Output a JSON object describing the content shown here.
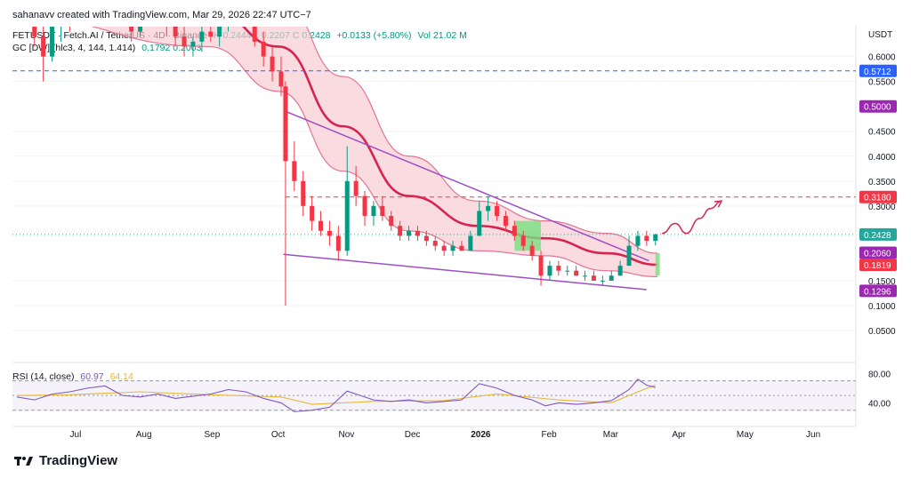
{
  "header": {
    "credit": "sahanavv created with TradingView.com, Mar 29, 2026 22:47 UTC−7",
    "symbol": "FETUSDT · Fetch.AI / TetherUS · 4D · Binance",
    "ohlc": "H 0.2444  L 0.2207  C 0.2428",
    "change": "+0.0133 (+5.80%)",
    "volume": "Vol 21.02 M",
    "gc_label": "GC [DW] (hlc3, 4, 144, 1.414)",
    "gc_values": "0.1792  0.2003",
    "rsi_label": "RSI (14, close)",
    "rsi_value": "60.97",
    "rsi_ma": "64.14"
  },
  "brand": {
    "name": "TradingView"
  },
  "colors": {
    "up": "#089981",
    "down": "#f23645",
    "band_fill": "#f8c9d0",
    "band_line": "#e57393",
    "center_line": "#d6244f",
    "wedge": "#9c4fc4",
    "rsi": "#7e57c2",
    "rsi_ma": "#e8b73a",
    "box": "#77e07e",
    "projection": "#d6244f"
  },
  "chart_data": {
    "type": "candlestick",
    "unit_label": "USDT",
    "price_axis": {
      "ticks": [
        "0.6000",
        "0.5500",
        "0.4500",
        "0.4000",
        "0.3500",
        "0.3000",
        "0.1500",
        "0.1000",
        "0.0500"
      ],
      "ylim": [
        0.0,
        0.66
      ]
    },
    "time_axis": {
      "labels": [
        "Jul",
        "Aug",
        "Sep",
        "Oct",
        "Nov",
        "Dec",
        "2026",
        "Feb",
        "Mar",
        "Apr",
        "May",
        "Jun"
      ],
      "bold": [
        "2026"
      ],
      "xlim": [
        "2025-06-08",
        "2026-06-26"
      ]
    },
    "price_tags": [
      {
        "value": 0.5712,
        "label": "0.5712",
        "color": "#2962ff",
        "line": "dashed"
      },
      {
        "value": 0.5,
        "label": "0.5000",
        "color": "#9c27b0"
      },
      {
        "value": 0.318,
        "label": "0.3180",
        "color": "#f23645",
        "line": "dashed"
      },
      {
        "value": 0.2428,
        "label": "0.2428",
        "color": "#26a69a",
        "line": "dotted"
      },
      {
        "value": 0.206,
        "label": "0.2060",
        "color": "#9c27b0"
      },
      {
        "value": 0.1819,
        "label": "0.1819",
        "color": "#f23645"
      },
      {
        "value": 0.1296,
        "label": "0.1296",
        "color": "#9c27b0"
      }
    ],
    "candles": [
      {
        "t": "2025-06-10",
        "o": 0.78,
        "h": 0.8,
        "l": 0.71,
        "c": 0.75
      },
      {
        "t": "2025-06-14",
        "o": 0.75,
        "h": 0.79,
        "l": 0.7,
        "c": 0.73
      },
      {
        "t": "2025-06-18",
        "o": 0.73,
        "h": 0.75,
        "l": 0.62,
        "c": 0.64
      },
      {
        "t": "2025-06-22",
        "o": 0.64,
        "h": 0.66,
        "l": 0.55,
        "c": 0.6
      },
      {
        "t": "2025-06-26",
        "o": 0.6,
        "h": 0.68,
        "l": 0.59,
        "c": 0.66
      },
      {
        "t": "2025-06-30",
        "o": 0.66,
        "h": 0.7,
        "l": 0.63,
        "c": 0.68
      },
      {
        "t": "2025-07-04",
        "o": 0.68,
        "h": 0.72,
        "l": 0.65,
        "c": 0.67
      },
      {
        "t": "2025-07-08",
        "o": 0.67,
        "h": 0.71,
        "l": 0.66,
        "c": 0.7
      },
      {
        "t": "2025-07-12",
        "o": 0.7,
        "h": 0.75,
        "l": 0.68,
        "c": 0.73
      },
      {
        "t": "2025-07-16",
        "o": 0.73,
        "h": 0.78,
        "l": 0.71,
        "c": 0.76
      },
      {
        "t": "2025-07-20",
        "o": 0.76,
        "h": 0.79,
        "l": 0.72,
        "c": 0.74
      },
      {
        "t": "2025-07-24",
        "o": 0.74,
        "h": 0.76,
        "l": 0.69,
        "c": 0.71
      },
      {
        "t": "2025-07-28",
        "o": 0.71,
        "h": 0.73,
        "l": 0.66,
        "c": 0.68
      },
      {
        "t": "2025-08-01",
        "o": 0.68,
        "h": 0.7,
        "l": 0.63,
        "c": 0.65
      },
      {
        "t": "2025-08-05",
        "o": 0.65,
        "h": 0.69,
        "l": 0.64,
        "c": 0.68
      },
      {
        "t": "2025-08-09",
        "o": 0.68,
        "h": 0.73,
        "l": 0.67,
        "c": 0.71
      },
      {
        "t": "2025-08-13",
        "o": 0.71,
        "h": 0.74,
        "l": 0.68,
        "c": 0.69
      },
      {
        "t": "2025-08-17",
        "o": 0.69,
        "h": 0.7,
        "l": 0.64,
        "c": 0.66
      },
      {
        "t": "2025-08-21",
        "o": 0.66,
        "h": 0.68,
        "l": 0.62,
        "c": 0.64
      },
      {
        "t": "2025-08-25",
        "o": 0.64,
        "h": 0.66,
        "l": 0.6,
        "c": 0.62
      },
      {
        "t": "2025-08-29",
        "o": 0.62,
        "h": 0.64,
        "l": 0.6,
        "c": 0.63
      },
      {
        "t": "2025-09-02",
        "o": 0.63,
        "h": 0.66,
        "l": 0.61,
        "c": 0.65
      },
      {
        "t": "2025-09-06",
        "o": 0.65,
        "h": 0.67,
        "l": 0.63,
        "c": 0.64
      },
      {
        "t": "2025-09-10",
        "o": 0.64,
        "h": 0.67,
        "l": 0.62,
        "c": 0.66
      },
      {
        "t": "2025-09-14",
        "o": 0.66,
        "h": 0.7,
        "l": 0.65,
        "c": 0.69
      },
      {
        "t": "2025-09-18",
        "o": 0.69,
        "h": 0.72,
        "l": 0.67,
        "c": 0.7
      },
      {
        "t": "2025-09-22",
        "o": 0.7,
        "h": 0.72,
        "l": 0.66,
        "c": 0.67
      },
      {
        "t": "2025-09-26",
        "o": 0.67,
        "h": 0.68,
        "l": 0.62,
        "c": 0.63
      },
      {
        "t": "2025-09-30",
        "o": 0.63,
        "h": 0.65,
        "l": 0.58,
        "c": 0.6
      },
      {
        "t": "2025-10-04",
        "o": 0.6,
        "h": 0.62,
        "l": 0.55,
        "c": 0.57
      },
      {
        "t": "2025-10-08",
        "o": 0.57,
        "h": 0.6,
        "l": 0.52,
        "c": 0.54
      },
      {
        "t": "2025-10-10",
        "o": 0.54,
        "h": 0.55,
        "l": 0.1,
        "c": 0.39
      },
      {
        "t": "2025-10-14",
        "o": 0.39,
        "h": 0.43,
        "l": 0.33,
        "c": 0.35
      },
      {
        "t": "2025-10-18",
        "o": 0.35,
        "h": 0.37,
        "l": 0.28,
        "c": 0.3
      },
      {
        "t": "2025-10-22",
        "o": 0.3,
        "h": 0.32,
        "l": 0.25,
        "c": 0.27
      },
      {
        "t": "2025-10-26",
        "o": 0.27,
        "h": 0.29,
        "l": 0.24,
        "c": 0.25
      },
      {
        "t": "2025-10-30",
        "o": 0.25,
        "h": 0.27,
        "l": 0.22,
        "c": 0.24
      },
      {
        "t": "2025-11-03",
        "o": 0.24,
        "h": 0.26,
        "l": 0.19,
        "c": 0.21
      },
      {
        "t": "2025-11-07",
        "o": 0.21,
        "h": 0.42,
        "l": 0.2,
        "c": 0.35
      },
      {
        "t": "2025-11-11",
        "o": 0.35,
        "h": 0.38,
        "l": 0.3,
        "c": 0.32
      },
      {
        "t": "2025-11-15",
        "o": 0.32,
        "h": 0.33,
        "l": 0.26,
        "c": 0.28
      },
      {
        "t": "2025-11-19",
        "o": 0.28,
        "h": 0.31,
        "l": 0.26,
        "c": 0.3
      },
      {
        "t": "2025-11-23",
        "o": 0.3,
        "h": 0.32,
        "l": 0.27,
        "c": 0.28
      },
      {
        "t": "2025-11-27",
        "o": 0.28,
        "h": 0.29,
        "l": 0.25,
        "c": 0.26
      },
      {
        "t": "2025-12-01",
        "o": 0.26,
        "h": 0.27,
        "l": 0.23,
        "c": 0.24
      },
      {
        "t": "2025-12-05",
        "o": 0.24,
        "h": 0.26,
        "l": 0.23,
        "c": 0.25
      },
      {
        "t": "2025-12-09",
        "o": 0.25,
        "h": 0.26,
        "l": 0.23,
        "c": 0.24
      },
      {
        "t": "2025-12-13",
        "o": 0.24,
        "h": 0.25,
        "l": 0.22,
        "c": 0.23
      },
      {
        "t": "2025-12-17",
        "o": 0.23,
        "h": 0.24,
        "l": 0.21,
        "c": 0.22
      },
      {
        "t": "2025-12-21",
        "o": 0.22,
        "h": 0.23,
        "l": 0.2,
        "c": 0.21
      },
      {
        "t": "2025-12-25",
        "o": 0.21,
        "h": 0.23,
        "l": 0.2,
        "c": 0.22
      },
      {
        "t": "2025-12-29",
        "o": 0.22,
        "h": 0.23,
        "l": 0.21,
        "c": 0.21
      },
      {
        "t": "2026-01-02",
        "o": 0.21,
        "h": 0.25,
        "l": 0.21,
        "c": 0.24
      },
      {
        "t": "2026-01-06",
        "o": 0.24,
        "h": 0.31,
        "l": 0.24,
        "c": 0.29
      },
      {
        "t": "2026-01-10",
        "o": 0.29,
        "h": 0.32,
        "l": 0.27,
        "c": 0.3
      },
      {
        "t": "2026-01-14",
        "o": 0.3,
        "h": 0.31,
        "l": 0.27,
        "c": 0.28
      },
      {
        "t": "2026-01-18",
        "o": 0.28,
        "h": 0.29,
        "l": 0.25,
        "c": 0.26
      },
      {
        "t": "2026-01-22",
        "o": 0.26,
        "h": 0.27,
        "l": 0.23,
        "c": 0.24
      },
      {
        "t": "2026-01-26",
        "o": 0.24,
        "h": 0.25,
        "l": 0.21,
        "c": 0.22
      },
      {
        "t": "2026-01-30",
        "o": 0.22,
        "h": 0.23,
        "l": 0.19,
        "c": 0.2
      },
      {
        "t": "2026-02-03",
        "o": 0.2,
        "h": 0.21,
        "l": 0.14,
        "c": 0.16
      },
      {
        "t": "2026-02-07",
        "o": 0.16,
        "h": 0.19,
        "l": 0.15,
        "c": 0.18
      },
      {
        "t": "2026-02-11",
        "o": 0.18,
        "h": 0.19,
        "l": 0.16,
        "c": 0.17
      },
      {
        "t": "2026-02-15",
        "o": 0.17,
        "h": 0.18,
        "l": 0.16,
        "c": 0.17
      },
      {
        "t": "2026-02-19",
        "o": 0.17,
        "h": 0.18,
        "l": 0.16,
        "c": 0.16
      },
      {
        "t": "2026-02-23",
        "o": 0.16,
        "h": 0.17,
        "l": 0.15,
        "c": 0.16
      },
      {
        "t": "2026-02-27",
        "o": 0.16,
        "h": 0.17,
        "l": 0.15,
        "c": 0.15
      },
      {
        "t": "2026-03-03",
        "o": 0.15,
        "h": 0.16,
        "l": 0.14,
        "c": 0.15
      },
      {
        "t": "2026-03-07",
        "o": 0.15,
        "h": 0.17,
        "l": 0.15,
        "c": 0.16
      },
      {
        "t": "2026-03-11",
        "o": 0.16,
        "h": 0.19,
        "l": 0.16,
        "c": 0.18
      },
      {
        "t": "2026-03-15",
        "o": 0.18,
        "h": 0.24,
        "l": 0.18,
        "c": 0.22
      },
      {
        "t": "2026-03-19",
        "o": 0.22,
        "h": 0.25,
        "l": 0.21,
        "c": 0.24
      },
      {
        "t": "2026-03-23",
        "o": 0.24,
        "h": 0.25,
        "l": 0.22,
        "c": 0.23
      },
      {
        "t": "2026-03-27",
        "o": 0.23,
        "h": 0.2444,
        "l": 0.2207,
        "c": 0.2428
      }
    ],
    "band": [
      {
        "t": "2025-06-08",
        "c": 0.74,
        "u": 0.8,
        "l": 0.68
      },
      {
        "t": "2025-09-05",
        "c": 0.7,
        "u": 0.78,
        "l": 0.62
      },
      {
        "t": "2025-10-07",
        "c": 0.62,
        "u": 0.72,
        "l": 0.53
      },
      {
        "t": "2025-11-05",
        "c": 0.46,
        "u": 0.56,
        "l": 0.37
      },
      {
        "t": "2025-12-05",
        "c": 0.32,
        "u": 0.4,
        "l": 0.25
      },
      {
        "t": "2026-01-05",
        "c": 0.26,
        "u": 0.31,
        "l": 0.21
      },
      {
        "t": "2026-02-05",
        "c": 0.235,
        "u": 0.27,
        "l": 0.2
      },
      {
        "t": "2026-03-05",
        "c": 0.205,
        "u": 0.245,
        "l": 0.17
      },
      {
        "t": "2026-03-28",
        "c": 0.182,
        "u": 0.205,
        "l": 0.158
      }
    ],
    "wedge": {
      "upper": [
        {
          "t": "2025-10-10",
          "p": 0.49
        },
        {
          "t": "2026-03-24",
          "p": 0.19
        }
      ],
      "lower": [
        {
          "t": "2025-10-09",
          "p": 0.203
        },
        {
          "t": "2026-03-23",
          "p": 0.132
        }
      ]
    },
    "boxes": [
      {
        "t1": "2026-01-22",
        "t2": "2026-02-03",
        "p1": 0.21,
        "p2": 0.27
      },
      {
        "t1": "2026-03-27",
        "t2": "2026-03-29",
        "p1": 0.16,
        "p2": 0.205
      }
    ],
    "projection": [
      {
        "t": "2026-03-30",
        "p": 0.245
      },
      {
        "t": "2026-04-05",
        "p": 0.265
      },
      {
        "t": "2026-04-10",
        "p": 0.245
      },
      {
        "t": "2026-04-16",
        "p": 0.275
      },
      {
        "t": "2026-04-21",
        "p": 0.295
      },
      {
        "t": "2026-04-26",
        "p": 0.31
      }
    ],
    "rsi": {
      "ylim": [
        20,
        90
      ],
      "ticks": [
        "80.00",
        "40.00"
      ],
      "upper_band": 70,
      "lower_band": 30,
      "mid": 50,
      "points": [
        {
          "t": "2025-06-10",
          "v": 48
        },
        {
          "t": "2025-06-18",
          "v": 44
        },
        {
          "t": "2025-06-26",
          "v": 52
        },
        {
          "t": "2025-07-04",
          "v": 55
        },
        {
          "t": "2025-07-12",
          "v": 60
        },
        {
          "t": "2025-07-20",
          "v": 63
        },
        {
          "t": "2025-07-28",
          "v": 50
        },
        {
          "t": "2025-08-05",
          "v": 48
        },
        {
          "t": "2025-08-13",
          "v": 52
        },
        {
          "t": "2025-08-21",
          "v": 46
        },
        {
          "t": "2025-08-29",
          "v": 49
        },
        {
          "t": "2025-09-06",
          "v": 52
        },
        {
          "t": "2025-09-14",
          "v": 58
        },
        {
          "t": "2025-09-22",
          "v": 55
        },
        {
          "t": "2025-09-30",
          "v": 46
        },
        {
          "t": "2025-10-08",
          "v": 40
        },
        {
          "t": "2025-10-14",
          "v": 28
        },
        {
          "t": "2025-10-22",
          "v": 30
        },
        {
          "t": "2025-10-30",
          "v": 34
        },
        {
          "t": "2025-11-07",
          "v": 56
        },
        {
          "t": "2025-11-11",
          "v": 52
        },
        {
          "t": "2025-11-19",
          "v": 44
        },
        {
          "t": "2025-11-27",
          "v": 42
        },
        {
          "t": "2025-12-05",
          "v": 44
        },
        {
          "t": "2025-12-13",
          "v": 40
        },
        {
          "t": "2025-12-21",
          "v": 42
        },
        {
          "t": "2025-12-29",
          "v": 44
        },
        {
          "t": "2026-01-06",
          "v": 66
        },
        {
          "t": "2026-01-14",
          "v": 60
        },
        {
          "t": "2026-01-22",
          "v": 50
        },
        {
          "t": "2026-01-30",
          "v": 44
        },
        {
          "t": "2026-02-05",
          "v": 36
        },
        {
          "t": "2026-02-11",
          "v": 40
        },
        {
          "t": "2026-02-19",
          "v": 38
        },
        {
          "t": "2026-02-27",
          "v": 40
        },
        {
          "t": "2026-03-07",
          "v": 43
        },
        {
          "t": "2026-03-15",
          "v": 58
        },
        {
          "t": "2026-03-19",
          "v": 72
        },
        {
          "t": "2026-03-23",
          "v": 64
        },
        {
          "t": "2026-03-27",
          "v": 60.97
        }
      ],
      "ma_points": [
        {
          "t": "2025-06-10",
          "v": 50
        },
        {
          "t": "2025-07-04",
          "v": 51
        },
        {
          "t": "2025-08-05",
          "v": 55
        },
        {
          "t": "2025-09-06",
          "v": 51
        },
        {
          "t": "2025-10-08",
          "v": 48
        },
        {
          "t": "2025-10-22",
          "v": 38
        },
        {
          "t": "2025-11-19",
          "v": 42
        },
        {
          "t": "2025-12-21",
          "v": 43
        },
        {
          "t": "2026-01-14",
          "v": 52
        },
        {
          "t": "2026-02-11",
          "v": 44
        },
        {
          "t": "2026-03-07",
          "v": 40
        },
        {
          "t": "2026-03-19",
          "v": 55
        },
        {
          "t": "2026-03-27",
          "v": 64.14
        }
      ]
    }
  }
}
